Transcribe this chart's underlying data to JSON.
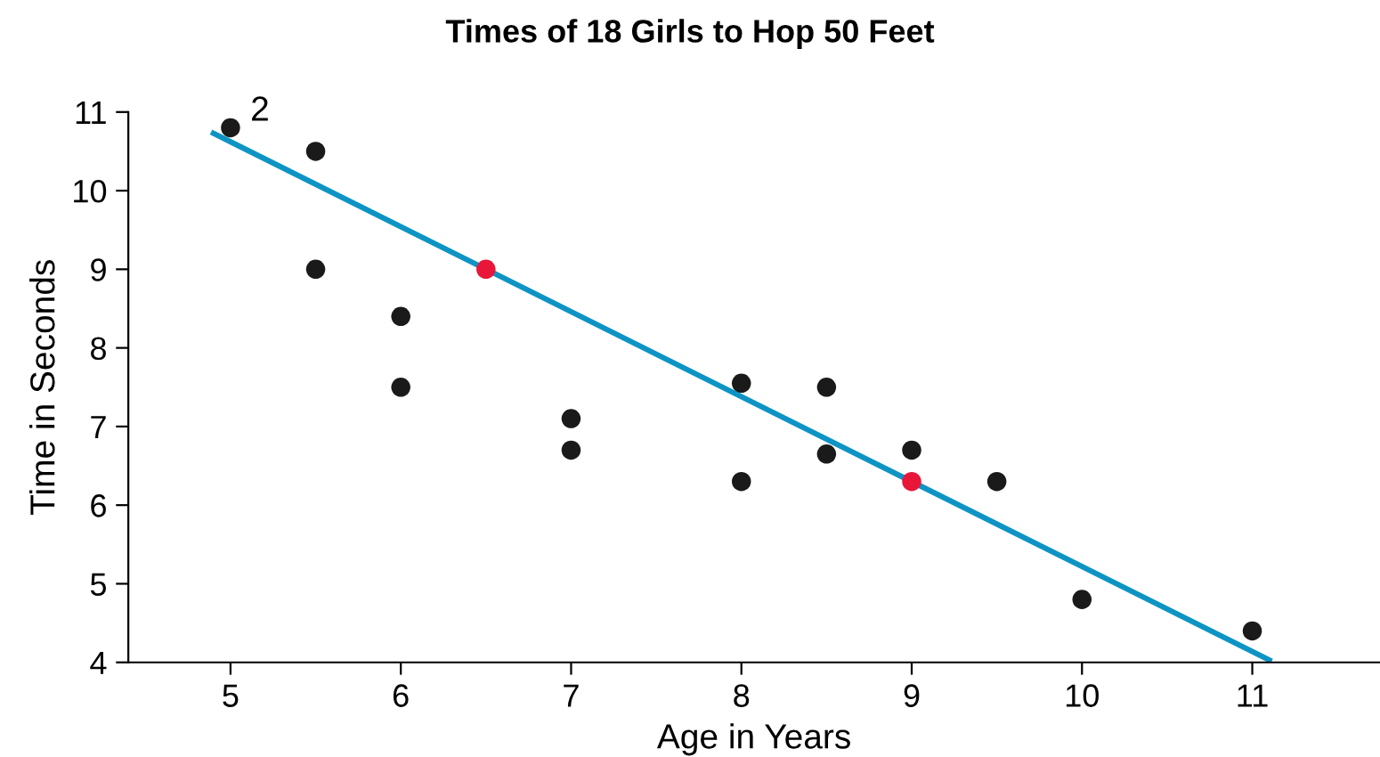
{
  "chart_data": {
    "type": "scatter",
    "title": "Times of 18 Girls to Hop 50 Feet",
    "xlabel": "Age in Years",
    "ylabel": "Time in Seconds",
    "xlim": [
      4.4,
      11.75
    ],
    "ylim": [
      4,
      11
    ],
    "xticks": [
      5,
      6,
      7,
      8,
      9,
      10,
      11
    ],
    "yticks": [
      4,
      5,
      6,
      7,
      8,
      9,
      10,
      11
    ],
    "grid": false,
    "annotations": [
      {
        "text": "2",
        "x": 5,
        "y": 10.8
      }
    ],
    "series": [
      {
        "marker": "circle",
        "x": [
          5,
          5.5,
          5.5,
          6,
          6,
          6.5,
          7,
          7,
          8,
          8,
          8.5,
          8.5,
          9,
          9,
          9.5,
          10,
          11
        ],
        "values": [
          10.8,
          10.5,
          9,
          8.4,
          7.5,
          9,
          7.1,
          6.7,
          7.55,
          6.3,
          7.5,
          6.65,
          6.7,
          6.3,
          6.3,
          4.8,
          4.4
        ],
        "colors": [
          "#1a1a1a",
          "#1a1a1a",
          "#1a1a1a",
          "#1a1a1a",
          "#1a1a1a",
          "#e8173a",
          "#1a1a1a",
          "#1a1a1a",
          "#1a1a1a",
          "#1a1a1a",
          "#1a1a1a",
          "#1a1a1a",
          "#1a1a1a",
          "#e8173a",
          "#1a1a1a",
          "#1a1a1a",
          "#1a1a1a"
        ]
      },
      {
        "type": "line",
        "color": "#0e94c4",
        "x": [
          4.9,
          11.1
        ],
        "values": [
          10.73,
          4.03
        ],
        "line_style": "solid"
      }
    ]
  }
}
